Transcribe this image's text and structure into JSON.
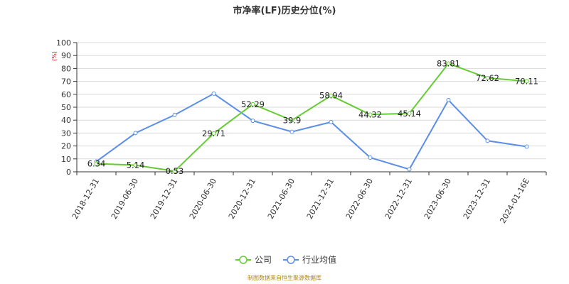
{
  "title": "市净率(LF)历史分位(%)",
  "source": "制图数据来自恒生聚源数据库",
  "chart_data": {
    "type": "line",
    "title": "市净率(LF)历史分位(%)",
    "y_unit": "(%)",
    "ylim": [
      0,
      100
    ],
    "y_ticks": [
      "0",
      "10",
      "20",
      "30",
      "40",
      "50",
      "60",
      "70",
      "80",
      "90",
      "100"
    ],
    "grid": true,
    "legend_position": "bottom",
    "categories": [
      "2018-12-31",
      "2019-06-30",
      "2019-12-31",
      "2020-06-30",
      "2020-12-31",
      "2021-06-30",
      "2021-12-31",
      "2022-06-30",
      "2022-12-31",
      "2023-06-30",
      "2023-12-31",
      "2024-01-16E"
    ],
    "series": [
      {
        "name": "公司",
        "color": "#66cc33",
        "values": [
          6.34,
          5.14,
          0.53,
          29.71,
          52.29,
          39.9,
          58.94,
          44.32,
          45.14,
          83.81,
          72.62,
          70.11
        ],
        "labels": [
          "6.34",
          "5.14",
          "0.53",
          "29.71",
          "52.29",
          "39.9",
          "58.94",
          "44.32",
          "45.14",
          "83.81",
          "72.62",
          "70.11"
        ]
      },
      {
        "name": "行业均值",
        "color": "#5b8ee6",
        "values": [
          8,
          30,
          44,
          60.5,
          39.5,
          31,
          38.5,
          11,
          2,
          55.5,
          24,
          19.5
        ]
      }
    ]
  }
}
